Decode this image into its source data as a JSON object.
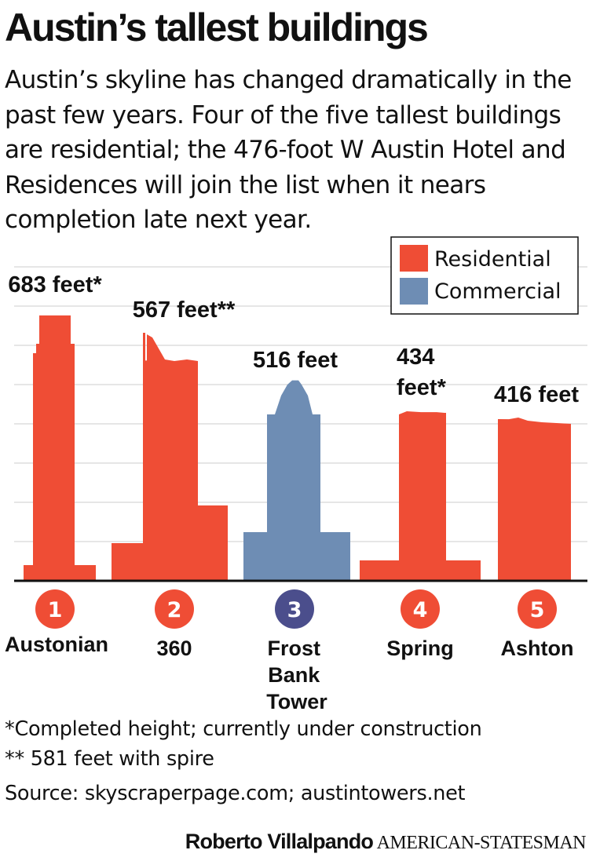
{
  "title": "Austin’s tallest buildings",
  "subtitle": "Austin’s skyline has changed dramatically in the past few years. Four of the five tallest buildings are residential; the 476-foot W Austin Hotel and Residences will join the list when it nears completion late next year.",
  "chart_data": {
    "type": "bar",
    "title": "Austin’s tallest buildings",
    "categories": [
      "Austonian",
      "360",
      "Frost Bank Tower",
      "Spring",
      "Ashton"
    ],
    "values": [
      683,
      567,
      516,
      434,
      416
    ],
    "value_labels": [
      "683 feet*",
      "567 feet**",
      "516 feet",
      "434 feet*",
      "416 feet"
    ],
    "ranks": [
      "1",
      "2",
      "3",
      "4",
      "5"
    ],
    "series_type": [
      "Residential",
      "Residential",
      "Commercial",
      "Residential",
      "Residential"
    ],
    "legend": [
      {
        "name": "Residential",
        "color": "#ef4d35"
      },
      {
        "name": "Commercial",
        "color": "#6e8db4"
      }
    ],
    "legend_position": "top-right",
    "ylim": [
      0,
      800
    ],
    "grid": true,
    "xlabel": "",
    "ylabel": ""
  },
  "colors": {
    "residential": "#ef4d35",
    "commercial": "#6e8db4",
    "commercial_badge": "#4b4e8c",
    "grid": "#cccccc"
  },
  "footnotes": [
    "*Completed height; currently under construction",
    "** 581 feet with spire",
    "Source: skyscraperpage.com; austintowers.net"
  ],
  "byline": {
    "author": "Roberto Villalpando",
    "org": "AMERICAN-STATESMAN"
  }
}
